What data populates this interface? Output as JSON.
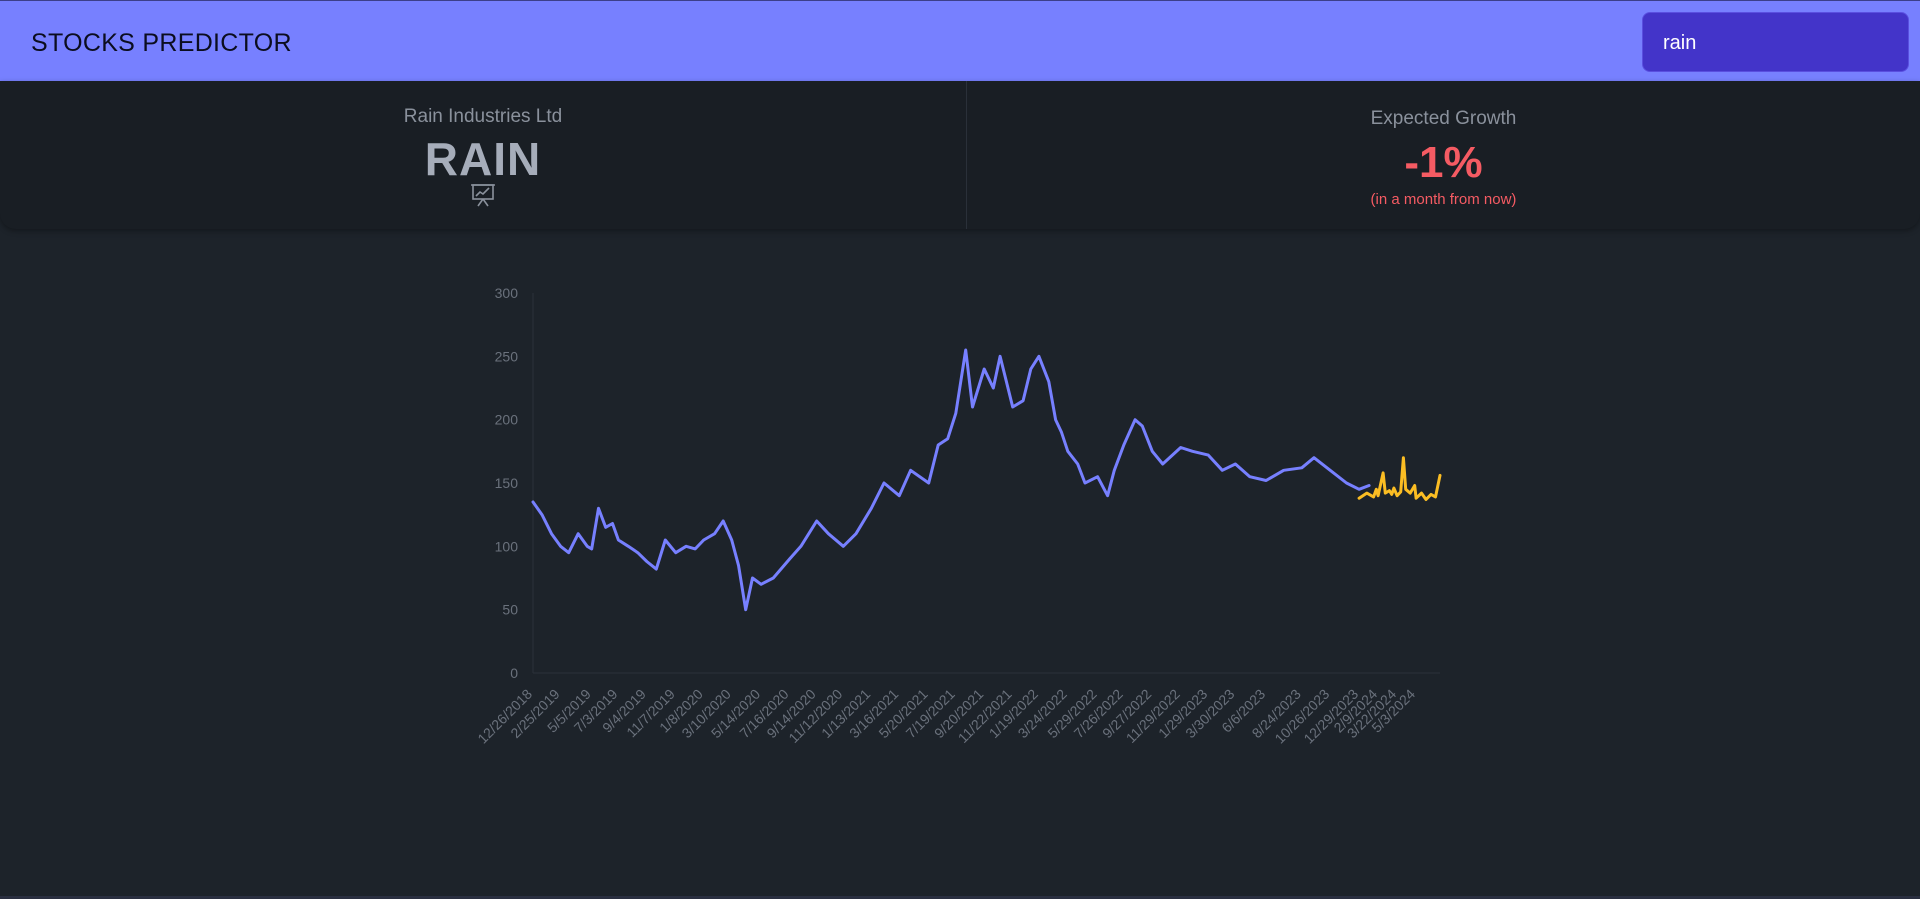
{
  "app": {
    "title": "STOCKS PREDICTOR"
  },
  "search": {
    "value": "rain"
  },
  "stock": {
    "company_name": "Rain Industries Ltd",
    "ticker": "RAIN",
    "icon": "presentation-chart-icon"
  },
  "growth": {
    "title": "Expected Growth",
    "value": "-1%",
    "note": "(in a month from now)",
    "color": "#f55b63"
  },
  "colors": {
    "accent": "#7780ff",
    "search_bg": "#4334c9",
    "history_line": "#7780ff",
    "forecast_line": "#fbbd23"
  },
  "chart_data": {
    "type": "line",
    "y_ticks": [
      0,
      50,
      100,
      150,
      200,
      250,
      300
    ],
    "ylim": [
      0,
      300
    ],
    "x_tick_labels": [
      "12/26/2018",
      "2/25/2019",
      "5/5/2019",
      "7/3/2019",
      "9/4/2019",
      "11/7/2019",
      "1/8/2020",
      "3/10/2020",
      "5/14/2020",
      "7/16/2020",
      "9/14/2020",
      "11/12/2020",
      "1/13/2021",
      "3/16/2021",
      "5/20/2021",
      "7/19/2021",
      "9/20/2021",
      "11/22/2021",
      "1/19/2022",
      "3/24/2022",
      "5/29/2022",
      "7/26/2022",
      "9/27/2022",
      "11/29/2022",
      "1/29/2023",
      "3/30/2023",
      "6/6/2023",
      "8/24/2023",
      "10/26/2023",
      "12/29/2023",
      "2/9/2024",
      "3/22/2024",
      "5/3/2024"
    ],
    "grid": false,
    "series": [
      {
        "color": "#7780ff",
        "points": [
          [
            "12/26/2018",
            135
          ],
          [
            "1/15/2019",
            125
          ],
          [
            "2/5/2019",
            110
          ],
          [
            "2/25/2019",
            100
          ],
          [
            "3/15/2019",
            95
          ],
          [
            "4/5/2019",
            110
          ],
          [
            "4/25/2019",
            100
          ],
          [
            "5/5/2019",
            98
          ],
          [
            "5/20/2019",
            130
          ],
          [
            "6/5/2019",
            115
          ],
          [
            "6/20/2019",
            118
          ],
          [
            "7/3/2019",
            105
          ],
          [
            "7/25/2019",
            100
          ],
          [
            "8/15/2019",
            95
          ],
          [
            "9/4/2019",
            88
          ],
          [
            "9/25/2019",
            82
          ],
          [
            "10/15/2019",
            105
          ],
          [
            "11/7/2019",
            95
          ],
          [
            "11/30/2019",
            100
          ],
          [
            "12/20/2019",
            98
          ],
          [
            "1/8/2020",
            105
          ],
          [
            "2/1/2020",
            110
          ],
          [
            "2/20/2020",
            120
          ],
          [
            "3/10/2020",
            105
          ],
          [
            "3/25/2020",
            85
          ],
          [
            "4/10/2020",
            50
          ],
          [
            "4/25/2020",
            75
          ],
          [
            "5/14/2020",
            70
          ],
          [
            "6/10/2020",
            75
          ],
          [
            "7/16/2020",
            90
          ],
          [
            "8/10/2020",
            100
          ],
          [
            "9/14/2020",
            120
          ],
          [
            "10/10/2020",
            110
          ],
          [
            "11/12/2020",
            100
          ],
          [
            "12/10/2020",
            110
          ],
          [
            "1/13/2021",
            130
          ],
          [
            "2/10/2021",
            150
          ],
          [
            "3/16/2021",
            140
          ],
          [
            "4/10/2021",
            160
          ],
          [
            "5/20/2021",
            150
          ],
          [
            "6/10/2021",
            180
          ],
          [
            "7/1/2021",
            185
          ],
          [
            "7/19/2021",
            205
          ],
          [
            "8/10/2021",
            255
          ],
          [
            "8/25/2021",
            210
          ],
          [
            "9/20/2021",
            240
          ],
          [
            "10/10/2021",
            225
          ],
          [
            "10/25/2021",
            250
          ],
          [
            "11/22/2021",
            210
          ],
          [
            "12/15/2021",
            215
          ],
          [
            "1/1/2022",
            240
          ],
          [
            "1/19/2022",
            250
          ],
          [
            "2/10/2022",
            230
          ],
          [
            "2/25/2022",
            200
          ],
          [
            "3/10/2022",
            190
          ],
          [
            "3/24/2022",
            175
          ],
          [
            "4/15/2022",
            165
          ],
          [
            "5/1/2022",
            150
          ],
          [
            "5/29/2022",
            155
          ],
          [
            "6/20/2022",
            140
          ],
          [
            "7/5/2022",
            160
          ],
          [
            "7/26/2022",
            180
          ],
          [
            "8/20/2022",
            200
          ],
          [
            "9/5/2022",
            195
          ],
          [
            "9/27/2022",
            175
          ],
          [
            "10/20/2022",
            165
          ],
          [
            "11/29/2022",
            178
          ],
          [
            "12/25/2022",
            175
          ],
          [
            "1/29/2023",
            172
          ],
          [
            "3/1/2023",
            160
          ],
          [
            "3/30/2023",
            165
          ],
          [
            "5/1/2023",
            155
          ],
          [
            "6/6/2023",
            152
          ],
          [
            "7/15/2023",
            160
          ],
          [
            "8/24/2023",
            162
          ],
          [
            "9/20/2023",
            170
          ],
          [
            "10/26/2023",
            160
          ],
          [
            "12/1/2023",
            150
          ],
          [
            "12/29/2023",
            145
          ],
          [
            "1/20/2024",
            148
          ]
        ]
      },
      {
        "color": "#fbbd23",
        "points": [
          [
            "12/29/2023",
            138
          ],
          [
            "1/15/2024",
            142
          ],
          [
            "1/30/2024",
            139
          ],
          [
            "2/5/2024",
            145
          ],
          [
            "2/9/2024",
            140
          ],
          [
            "2/20/2024",
            158
          ],
          [
            "2/25/2024",
            142
          ],
          [
            "3/5/2024",
            144
          ],
          [
            "3/10/2024",
            141
          ],
          [
            "3/15/2024",
            146
          ],
          [
            "3/22/2024",
            140
          ],
          [
            "3/30/2024",
            143
          ],
          [
            "4/5/2024",
            170
          ],
          [
            "4/10/2024",
            145
          ],
          [
            "4/20/2024",
            142
          ],
          [
            "4/30/2024",
            148
          ],
          [
            "5/3/2024",
            138
          ],
          [
            "5/15/2024",
            142
          ],
          [
            "5/25/2024",
            137
          ],
          [
            "6/5/2024",
            141
          ],
          [
            "6/15/2024",
            139
          ],
          [
            "6/25/2024",
            156
          ]
        ]
      }
    ]
  }
}
